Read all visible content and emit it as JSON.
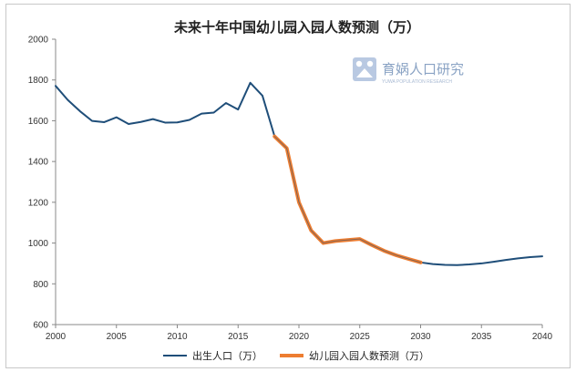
{
  "watermark": {
    "text": "育娲人口研究",
    "subtitle": "YUWA POPULATION RESEARCH"
  },
  "chart_data": {
    "type": "line",
    "title": "未来十年中国幼儿园入园人数预测（万）",
    "xlabel": "",
    "ylabel": "",
    "xlim": [
      2000,
      2040
    ],
    "ylim": [
      600,
      2000
    ],
    "x_ticks": [
      2000,
      2005,
      2010,
      2015,
      2020,
      2025,
      2030,
      2035,
      2040
    ],
    "y_ticks": [
      600,
      800,
      1000,
      1200,
      1400,
      1600,
      1800,
      2000
    ],
    "grid": false,
    "legend_position": "bottom",
    "colors": {
      "births": "#1f4e79",
      "kindergarten": "#ed7d31",
      "axis": "#888888"
    },
    "series": [
      {
        "name": "出生人口（万）",
        "x": [
          2000,
          2001,
          2002,
          2003,
          2004,
          2005,
          2006,
          2007,
          2008,
          2009,
          2010,
          2011,
          2012,
          2013,
          2014,
          2015,
          2016,
          2017,
          2018,
          2019,
          2020,
          2021,
          2022,
          2023,
          2024,
          2025,
          2026,
          2027,
          2028,
          2029,
          2030,
          2031,
          2032,
          2033,
          2034,
          2035,
          2036,
          2037,
          2038,
          2039,
          2040
        ],
        "values": [
          1771,
          1702,
          1647,
          1599,
          1593,
          1617,
          1584,
          1594,
          1608,
          1591,
          1592,
          1604,
          1635,
          1640,
          1687,
          1655,
          1786,
          1723,
          1523,
          1465,
          1200,
          1062,
          1000,
          1010,
          1015,
          1020,
          990,
          962,
          940,
          922,
          905,
          897,
          893,
          892,
          895,
          900,
          908,
          917,
          925,
          931,
          935
        ]
      },
      {
        "name": "幼儿园入园人数预测（万）",
        "x": [
          2018,
          2019,
          2020,
          2021,
          2022,
          2023,
          2024,
          2025,
          2026,
          2027,
          2028,
          2029,
          2030
        ],
        "values": [
          1523,
          1465,
          1200,
          1062,
          1000,
          1010,
          1015,
          1020,
          990,
          962,
          940,
          922,
          905
        ]
      }
    ]
  }
}
